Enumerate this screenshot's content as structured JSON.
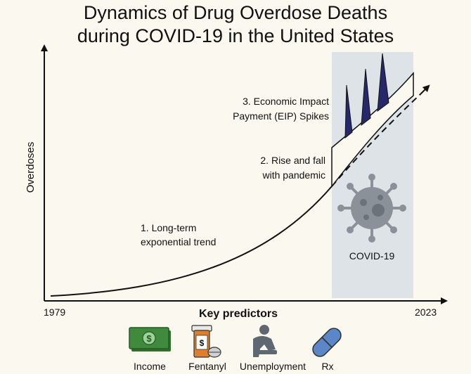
{
  "title": {
    "line1": "Dynamics of Drug Overdose Deaths",
    "line2": "during COVID-19 in the United States"
  },
  "axes": {
    "y_label": "Overdoses",
    "x_start": "1979",
    "x_end": "2023",
    "x_label": "Key predictors"
  },
  "annotations": {
    "trend_line1": "1. Long-term",
    "trend_line2": "exponential trend",
    "pandemic_line1": "2. Rise and fall",
    "pandemic_line2": "with pandemic",
    "eip_line1": "3. Economic Impact",
    "eip_line2": "Payment (EIP) Spikes",
    "covid_label": "COVID-19"
  },
  "predictors": [
    {
      "label": "Income",
      "icon": "money-icon"
    },
    {
      "label": "Fentanyl",
      "icon": "pill-bottle-icon"
    },
    {
      "label": "Unemployment",
      "icon": "person-sitting-icon"
    },
    {
      "label": "Rx",
      "icon": "capsule-icon"
    }
  ],
  "colors": {
    "covid_panel": "#dde3e6",
    "spike": "#27276b",
    "virus": "#8a9199",
    "money": "#3f8a3c",
    "bottle": "#e07f2a",
    "person": "#5f6770",
    "capsule": "#5b86c8"
  }
}
